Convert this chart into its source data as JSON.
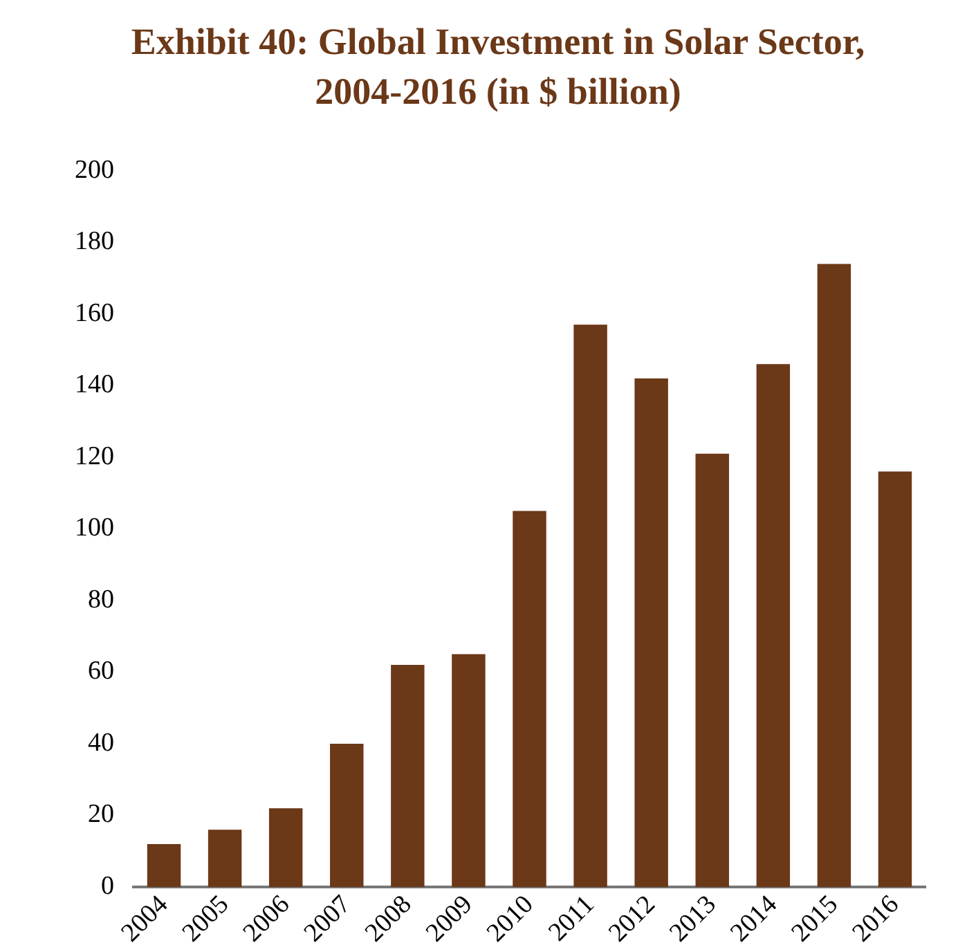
{
  "chart_data": {
    "type": "bar",
    "title": "Exhibit 40: Global Investment in Solar Sector, 2004-2016 (in $ billion)",
    "categories": [
      "2004",
      "2005",
      "2006",
      "2007",
      "2008",
      "2009",
      "2010",
      "2011",
      "2012",
      "2013",
      "2014",
      "2015",
      "2016"
    ],
    "values": [
      12,
      16,
      22,
      40,
      62,
      65,
      105,
      157,
      142,
      121,
      146,
      174,
      116
    ],
    "color": "#6b3818",
    "ylim": [
      0,
      200
    ],
    "yticks": [
      0,
      20,
      40,
      60,
      80,
      100,
      120,
      140,
      160,
      180,
      200
    ],
    "grid": false
  }
}
